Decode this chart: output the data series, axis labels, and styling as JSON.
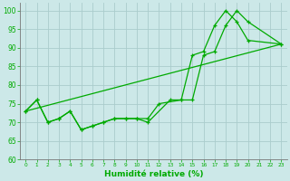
{
  "xlabel": "Humidité relative (%)",
  "bg_color": "#cce8e8",
  "grid_color": "#aacccc",
  "line_color": "#00aa00",
  "ylim": [
    60,
    102
  ],
  "xlim": [
    -0.5,
    23.5
  ],
  "yticks": [
    60,
    65,
    70,
    75,
    80,
    85,
    90,
    95,
    100
  ],
  "xticks": [
    0,
    1,
    2,
    3,
    4,
    5,
    6,
    7,
    8,
    9,
    10,
    11,
    12,
    13,
    14,
    15,
    16,
    17,
    18,
    19,
    20,
    21,
    22,
    23
  ],
  "series1_x": [
    0,
    1,
    2,
    3,
    4,
    5,
    6,
    7,
    8,
    9,
    10,
    11,
    13,
    14,
    15,
    16,
    17,
    18,
    19,
    20,
    23
  ],
  "series1_y": [
    73,
    76,
    70,
    71,
    73,
    68,
    69,
    70,
    71,
    71,
    71,
    70,
    76,
    76,
    88,
    89,
    96,
    100,
    97,
    92,
    91
  ],
  "series2_x": [
    0,
    1,
    2,
    3,
    4,
    5,
    6,
    7,
    8,
    9,
    10,
    11,
    12,
    14,
    15,
    16,
    17,
    18,
    19,
    20,
    23
  ],
  "series2_y": [
    73,
    76,
    70,
    71,
    73,
    68,
    69,
    70,
    71,
    71,
    71,
    71,
    75,
    76,
    76,
    88,
    89,
    96,
    100,
    97,
    91
  ],
  "series3_x": [
    0,
    23
  ],
  "series3_y": [
    73,
    91
  ]
}
